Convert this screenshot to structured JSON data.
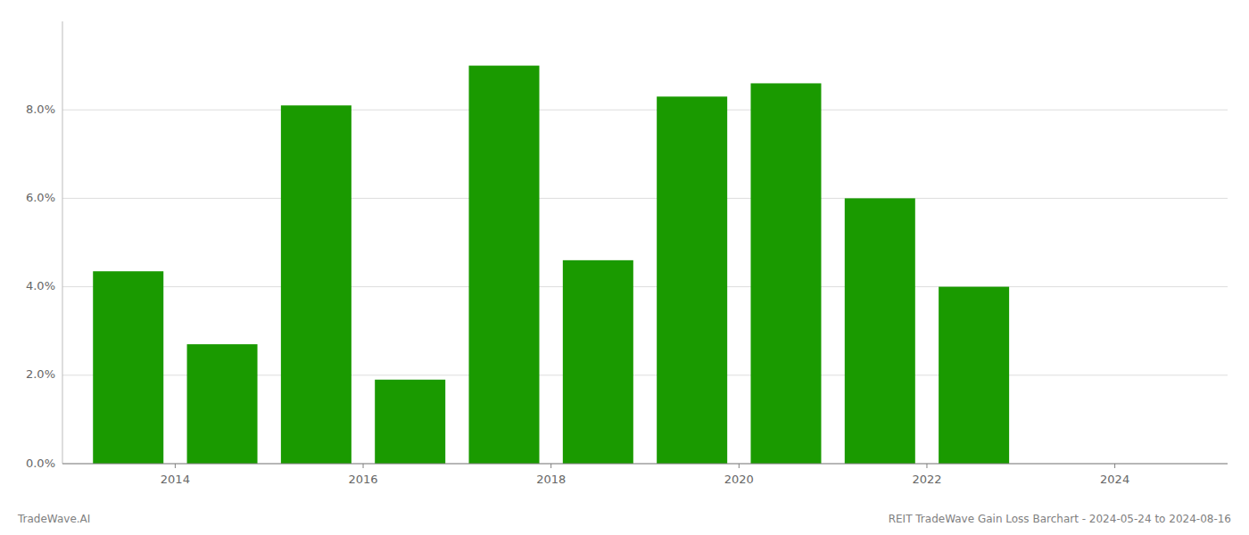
{
  "chart_data": {
    "type": "bar",
    "x": [
      2013,
      2014,
      2015,
      2016,
      2017,
      2018,
      2019,
      2020,
      2021,
      2022,
      2023
    ],
    "values": [
      0.0435,
      0.027,
      0.081,
      0.019,
      0.09,
      0.046,
      0.083,
      0.086,
      0.06,
      0.04,
      0.0
    ],
    "color": "#1a9a00",
    "xlim": [
      2012.3,
      2024.7
    ],
    "xticks": [
      {
        "value": 2013.5,
        "label": "2014"
      },
      {
        "value": 2015.5,
        "label": "2016"
      },
      {
        "value": 2017.5,
        "label": "2018"
      },
      {
        "value": 2019.5,
        "label": "2020"
      },
      {
        "value": 2021.5,
        "label": "2022"
      },
      {
        "value": 2023.5,
        "label": "2024"
      }
    ],
    "ylim": [
      0,
      0.1
    ],
    "yticks": [
      {
        "value": 0.0,
        "label": "0.0%"
      },
      {
        "value": 0.02,
        "label": "2.0%"
      },
      {
        "value": 0.04,
        "label": "4.0%"
      },
      {
        "value": 0.06,
        "label": "6.0%"
      },
      {
        "value": 0.08,
        "label": "8.0%"
      }
    ],
    "grid": true,
    "annotations": [
      "TradeWave.AI",
      "REIT TradeWave Gain Loss Barchart - 2024-05-24 to 2024-08-16"
    ]
  }
}
